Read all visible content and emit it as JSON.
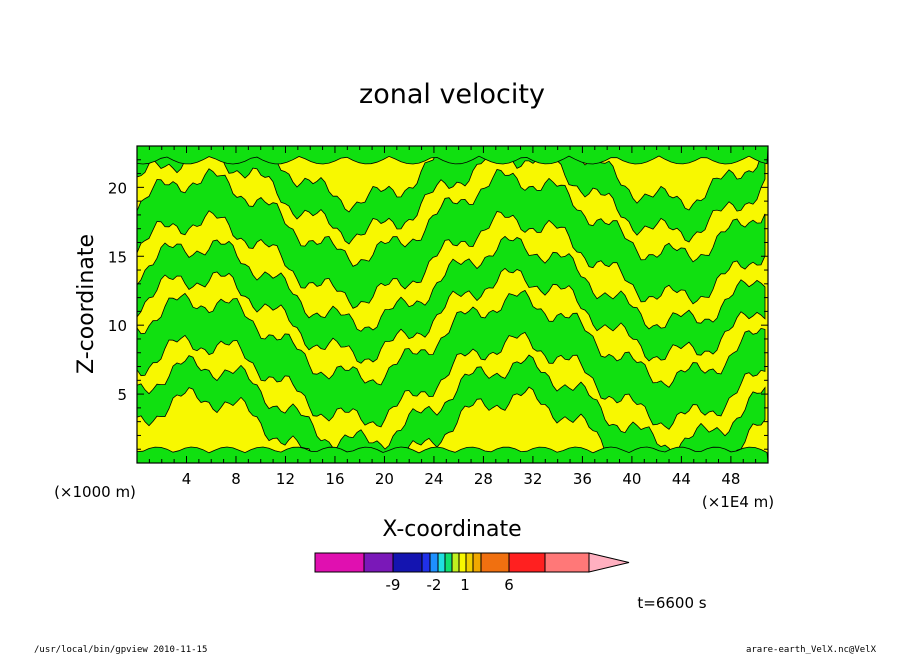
{
  "chart_data": {
    "type": "heatmap",
    "title": "zonal velocity",
    "xlabel": "X-coordinate",
    "ylabel": "Z-coordinate",
    "x_unit": "(×1E4 m)",
    "z_unit": "(×1000 m)",
    "xlim": [
      0,
      51
    ],
    "ylim": [
      0,
      23
    ],
    "x_ticks": [
      4,
      8,
      12,
      16,
      20,
      24,
      28,
      32,
      36,
      40,
      44,
      48
    ],
    "y_ticks": [
      5,
      10,
      15,
      20
    ],
    "colorbar": {
      "tick_labels": [
        "-9",
        "-2",
        "1",
        "6"
      ],
      "colors": [
        "#e010b0",
        "#7a18b8",
        "#1414b0",
        "#2030e8",
        "#1e90ff",
        "#20e0e0",
        "#10e070",
        "#c0f020",
        "#f8f800",
        "#f0d000",
        "#f0a800",
        "#f07010",
        "#ff2020",
        "#ff7878",
        "#ffb0c0"
      ]
    },
    "field_colors": {
      "yellow": "#f8f800",
      "green": "#10e010",
      "contour": "#000000"
    },
    "annotation": "t=6600 s"
  },
  "footer": {
    "left": "/usr/local/bin/gpview  2010-11-15",
    "right": "arare-earth_VelX.nc@VelX"
  }
}
